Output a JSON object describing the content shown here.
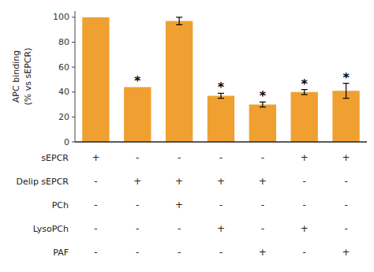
{
  "chart_data": {
    "type": "bar",
    "ylabel": [
      "APC binding",
      "(% vs sEPCR)"
    ],
    "categories": [
      null,
      null,
      null,
      null,
      null,
      null,
      null
    ],
    "values": [
      100,
      44,
      97,
      37,
      30,
      40,
      41
    ],
    "errors": [
      0,
      0,
      3,
      2,
      2,
      2,
      6
    ],
    "significance": [
      null,
      "*",
      null,
      "*",
      "*",
      "*",
      "*"
    ],
    "color": "#F0A030",
    "ylim": [
      0,
      105
    ],
    "yticks": [
      0,
      20,
      40,
      60,
      80,
      100
    ],
    "grid": false,
    "tick_labels": "y",
    "table": {
      "row_labels": [
        "sEPCR",
        "Delip sEPCR",
        "PCh",
        "LysoPCh",
        "PAF"
      ],
      "cells": [
        [
          "+",
          "-",
          "-",
          "-",
          "-",
          "+",
          "+"
        ],
        [
          "-",
          "+",
          "+",
          "+",
          "+",
          "-",
          "-"
        ],
        [
          "-",
          "-",
          "+",
          "-",
          "-",
          "-",
          "-"
        ],
        [
          "-",
          "-",
          "-",
          "+",
          "-",
          "+",
          "-"
        ],
        [
          "-",
          "-",
          "-",
          "-",
          "+",
          "-",
          "+"
        ]
      ]
    }
  }
}
